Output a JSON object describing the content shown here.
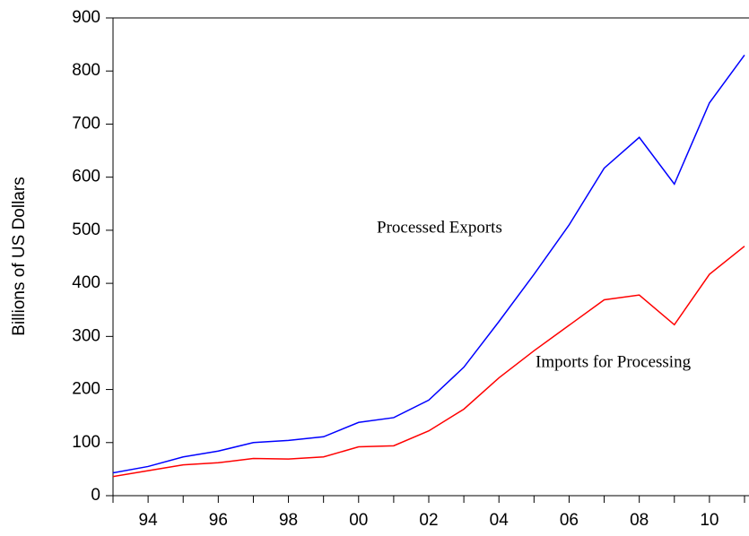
{
  "chart_data": {
    "type": "line",
    "y_label": "Billions of US Dollars",
    "categories": [
      null,
      "94",
      null,
      "96",
      null,
      "98",
      null,
      "00",
      null,
      "02",
      null,
      "04",
      null,
      "06",
      null,
      "08",
      null,
      "10",
      null
    ],
    "series": [
      {
        "name": "Processed Exports",
        "color": "#0000ff",
        "values": [
          43,
          55,
          73,
          84,
          100,
          104,
          111,
          138,
          147,
          180,
          242,
          328,
          417,
          510,
          617,
          675,
          587,
          740,
          830
        ]
      },
      {
        "name": "Imports for Processing",
        "color": "#ff0000",
        "values": [
          36,
          47,
          58,
          62,
          70,
          69,
          73,
          92,
          94,
          122,
          163,
          222,
          273,
          321,
          369,
          378,
          322,
          417,
          470
        ]
      }
    ],
    "ylim": [
      0,
      900
    ],
    "yticks": [
      0,
      100,
      200,
      300,
      400,
      500,
      600,
      700,
      800,
      900
    ],
    "grid": false
  }
}
